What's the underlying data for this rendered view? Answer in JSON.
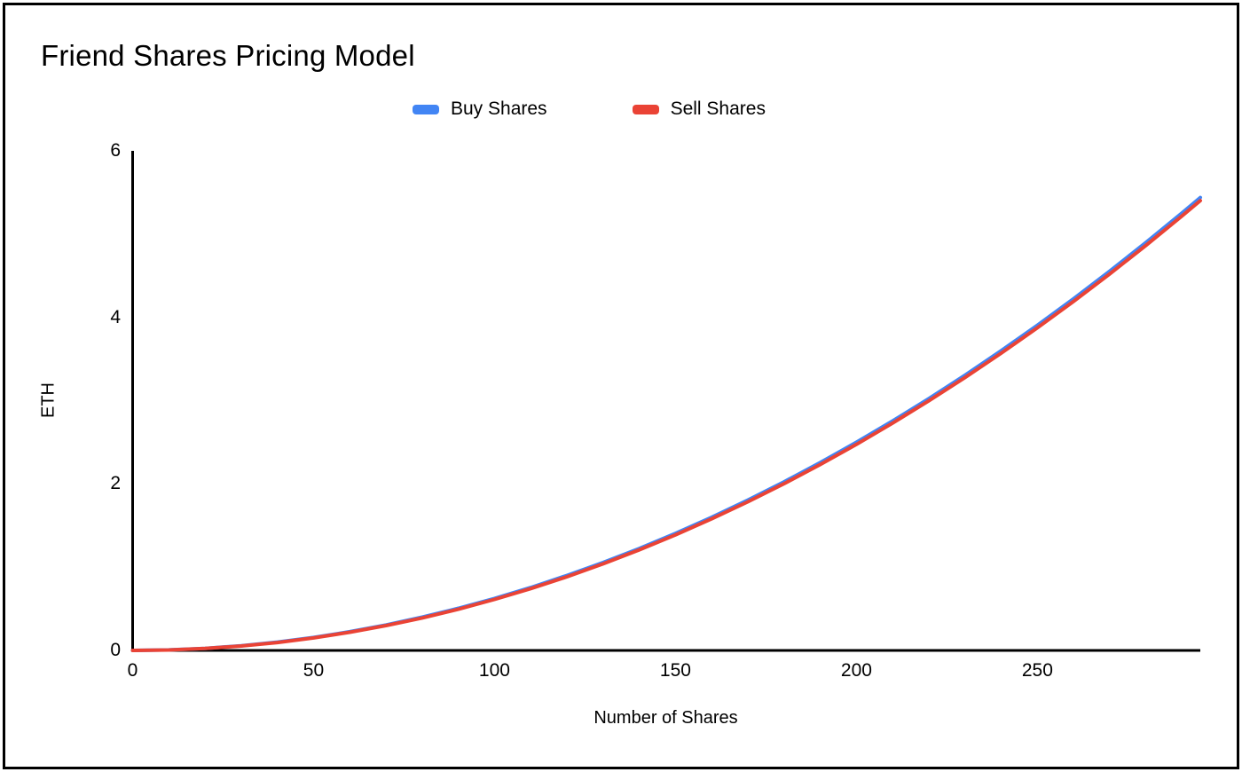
{
  "chart_data": {
    "type": "line",
    "title": "Friend Shares Pricing Model",
    "xlabel": "Number of Shares",
    "ylabel": "ETH",
    "xlim": [
      0,
      295
    ],
    "ylim": [
      0,
      6
    ],
    "x_ticks": [
      0,
      50,
      100,
      150,
      200,
      250
    ],
    "y_ticks": [
      0,
      2,
      4,
      6
    ],
    "grid": false,
    "legend_position": "top-center",
    "x": [
      0,
      10,
      20,
      30,
      40,
      50,
      60,
      70,
      80,
      90,
      100,
      110,
      120,
      130,
      140,
      150,
      160,
      170,
      180,
      190,
      200,
      210,
      220,
      230,
      240,
      250,
      260,
      270,
      280,
      290,
      295
    ],
    "series": [
      {
        "name": "Buy Shares",
        "color": "#4285F4",
        "values": [
          0,
          0.006,
          0.025,
          0.056,
          0.1,
          0.156,
          0.225,
          0.306,
          0.4,
          0.506,
          0.625,
          0.756,
          0.9,
          1.056,
          1.225,
          1.406,
          1.6,
          1.806,
          2.025,
          2.256,
          2.5,
          2.756,
          3.025,
          3.306,
          3.6,
          3.906,
          4.225,
          4.556,
          4.9,
          5.256,
          5.439
        ]
      },
      {
        "name": "Sell Shares",
        "color": "#EA4335",
        "values": [
          0,
          0.005,
          0.023,
          0.053,
          0.095,
          0.15,
          0.218,
          0.298,
          0.39,
          0.495,
          0.613,
          0.743,
          0.885,
          1.04,
          1.208,
          1.388,
          1.58,
          1.785,
          2.003,
          2.233,
          2.475,
          2.73,
          2.998,
          3.278,
          3.57,
          3.875,
          4.193,
          4.523,
          4.865,
          5.22,
          5.402
        ]
      }
    ]
  }
}
